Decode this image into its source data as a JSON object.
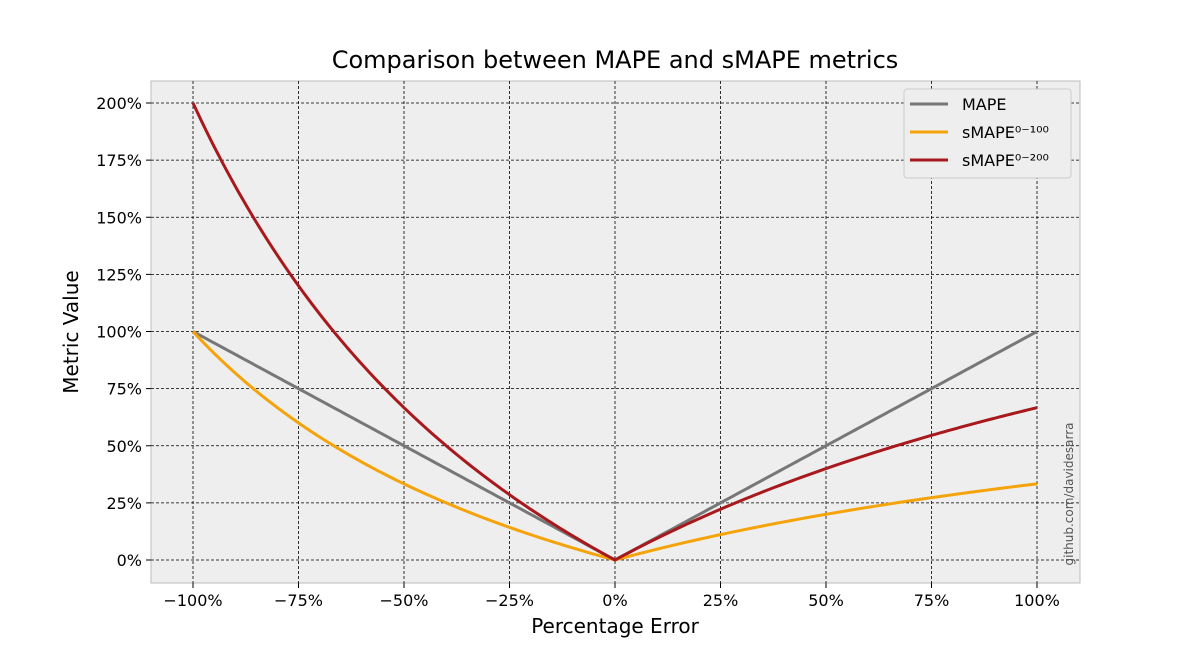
{
  "chart_data": {
    "type": "line",
    "title": "Comparison between MAPE and sMAPE metrics",
    "xlabel": "Percentage Error",
    "ylabel": "Metric Value",
    "xlim": [
      -100,
      100
    ],
    "ylim": [
      0,
      200
    ],
    "grid": true,
    "legend_position": "top-right",
    "x_ticks": [
      -100,
      -75,
      -50,
      -25,
      0,
      25,
      50,
      75,
      100
    ],
    "x_tick_labels": [
      "−100%",
      "−75%",
      "−50%",
      "−25%",
      "0%",
      "25%",
      "50%",
      "75%",
      "100%"
    ],
    "y_ticks": [
      0,
      25,
      50,
      75,
      100,
      125,
      150,
      175,
      200
    ],
    "y_tick_labels": [
      "0%",
      "25%",
      "50%",
      "75%",
      "100%",
      "125%",
      "150%",
      "175%",
      "200%"
    ],
    "x": [
      -100,
      -90,
      -80,
      -70,
      -60,
      -50,
      -40,
      -30,
      -20,
      -10,
      0,
      10,
      20,
      30,
      40,
      50,
      60,
      70,
      80,
      90,
      100
    ],
    "series": [
      {
        "name": "MAPE",
        "color": "#777777",
        "values": [
          100,
          90,
          80,
          70,
          60,
          50,
          40,
          30,
          20,
          10,
          0,
          10,
          20,
          30,
          40,
          50,
          60,
          70,
          80,
          90,
          100
        ]
      },
      {
        "name": "sMAPE⁰⁻¹⁰⁰",
        "color": "#f5a30a",
        "values": [
          100,
          81.8,
          66.7,
          53.8,
          42.9,
          33.3,
          25,
          17.6,
          11.1,
          5.3,
          0,
          4.8,
          9.1,
          13,
          16.7,
          20,
          23.1,
          25.9,
          28.6,
          31,
          33.3
        ]
      },
      {
        "name": "sMAPE⁰⁻²⁰⁰",
        "color": "#a8191d",
        "values": [
          200,
          163.6,
          133.3,
          107.7,
          85.7,
          66.7,
          50,
          35.3,
          22.2,
          10.5,
          0,
          9.5,
          18.2,
          26.1,
          33.3,
          40,
          46.2,
          51.9,
          57.1,
          62.1,
          66.7
        ]
      }
    ],
    "watermark": "github.com/davidesarra"
  }
}
